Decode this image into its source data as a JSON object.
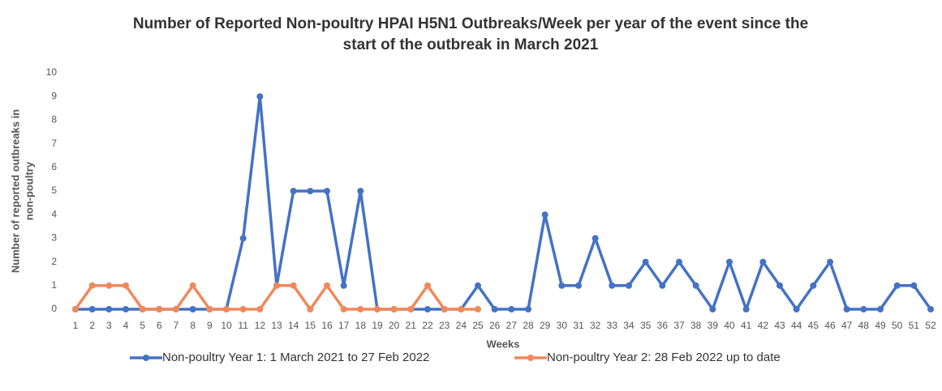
{
  "chart_data": {
    "type": "line",
    "title": [
      "Number of Reported Non-poultry HPAI H5N1 Outbreaks/Week per year of the event since the",
      "start of the outbreak in March 2021"
    ],
    "x_label": "Weeks",
    "y_label": [
      "Number of reported outbreaks in",
      "non-poultry"
    ],
    "categories": [
      1,
      2,
      3,
      4,
      5,
      6,
      7,
      8,
      9,
      10,
      11,
      12,
      13,
      14,
      15,
      16,
      17,
      18,
      19,
      20,
      21,
      22,
      23,
      24,
      25,
      26,
      27,
      28,
      29,
      30,
      31,
      32,
      33,
      34,
      35,
      36,
      37,
      38,
      39,
      40,
      41,
      42,
      43,
      44,
      45,
      46,
      47,
      48,
      49,
      50,
      51,
      52
    ],
    "ylim": [
      0,
      10
    ],
    "yticks": [
      0,
      1,
      2,
      3,
      4,
      5,
      6,
      7,
      8,
      9,
      10
    ],
    "series": [
      {
        "name": "Non-poultry Year 1: 1 March 2021 to 27 Feb 2022",
        "color": "#4472c4",
        "values": [
          0,
          0,
          0,
          0,
          0,
          0,
          0,
          0,
          0,
          0,
          3,
          9,
          1,
          5,
          5,
          5,
          1,
          5,
          0,
          0,
          0,
          0,
          0,
          0,
          1,
          0,
          0,
          0,
          4,
          1,
          1,
          3,
          1,
          1,
          2,
          1,
          2,
          1,
          0,
          2,
          0,
          2,
          1,
          0,
          1,
          2,
          0,
          0,
          0,
          1,
          1,
          0
        ]
      },
      {
        "name": "Non-poultry Year 2: 28 Feb 2022 up to date",
        "color": "#f0895a",
        "values": [
          0,
          1,
          1,
          1,
          0,
          0,
          0,
          1,
          0,
          0,
          0,
          0,
          1,
          1,
          0,
          1,
          0,
          0,
          0,
          0,
          0,
          1,
          0,
          0,
          0,
          null,
          null,
          null,
          null,
          null,
          null,
          null,
          null,
          null,
          null,
          null,
          null,
          null,
          null,
          null,
          null,
          null,
          null,
          null,
          null,
          null,
          null,
          null,
          null,
          null,
          null,
          null
        ]
      }
    ]
  }
}
